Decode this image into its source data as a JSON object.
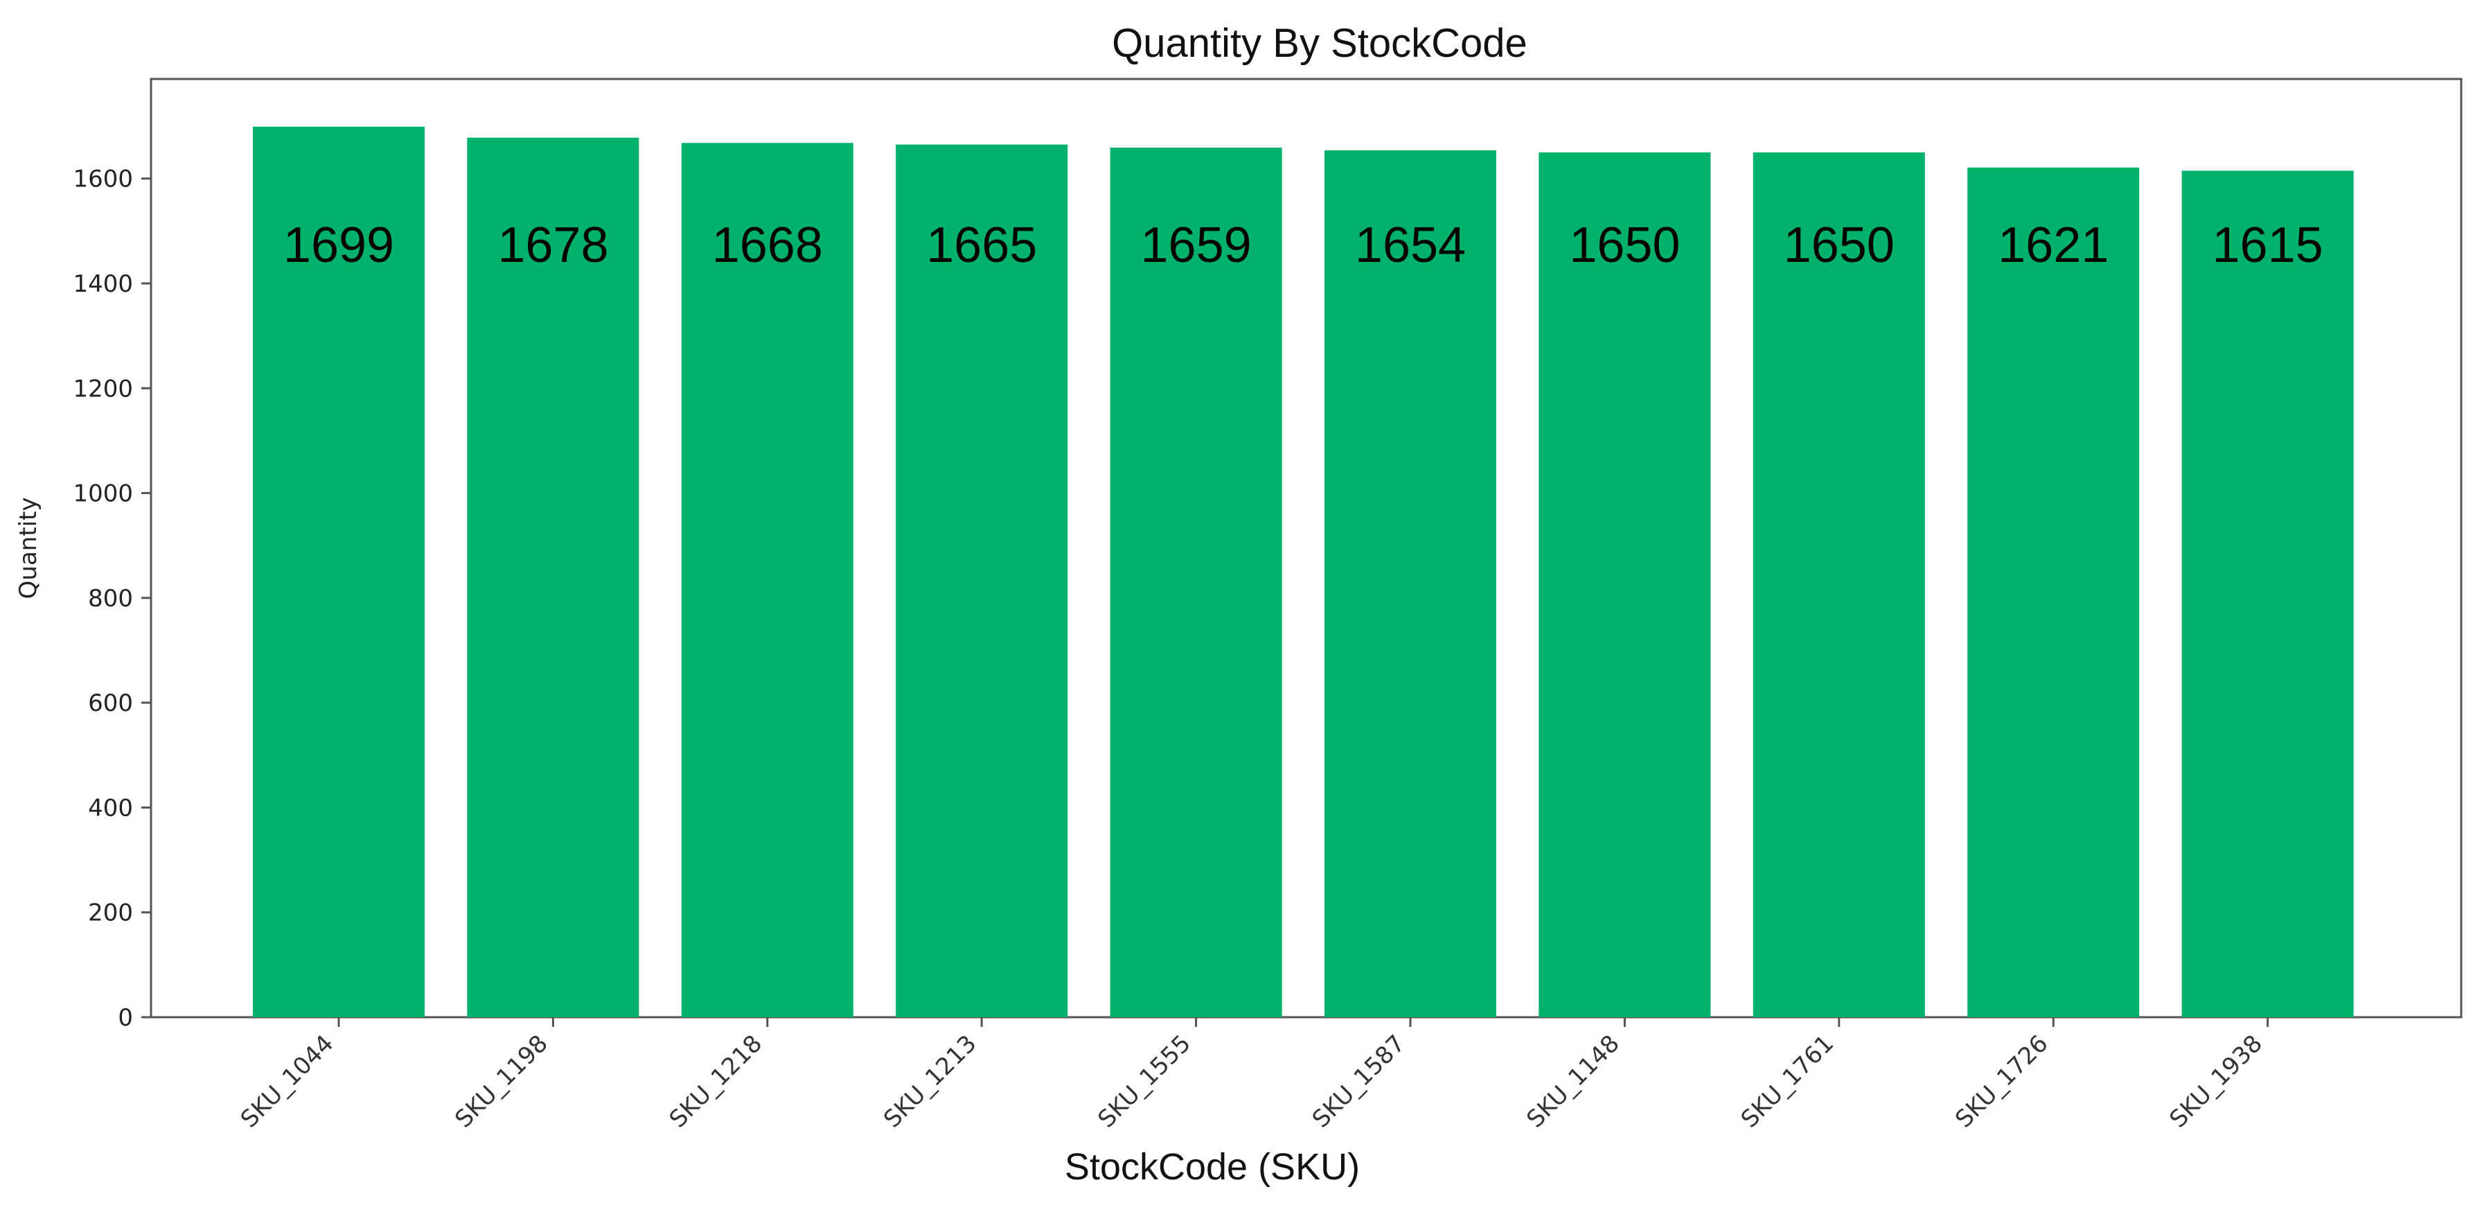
{
  "chart_data": {
    "type": "bar",
    "title": "Quantity By StockCode",
    "xlabel": "StockCode (SKU)",
    "ylabel": "Quantity",
    "categories": [
      "SKU_1044",
      "SKU_1198",
      "SKU_1218",
      "SKU_1213",
      "SKU_1555",
      "SKU_1587",
      "SKU_1148",
      "SKU_1761",
      "SKU_1726",
      "SKU_1938"
    ],
    "values": [
      1699,
      1678,
      1668,
      1665,
      1659,
      1654,
      1650,
      1650,
      1621,
      1615
    ],
    "data_labels": [
      "1699",
      "1678",
      "1668",
      "1665",
      "1659",
      "1654",
      "1650",
      "1650",
      "1621",
      "1615"
    ],
    "ylim": [
      0,
      1790
    ],
    "yticks": [
      0,
      200,
      400,
      600,
      800,
      1000,
      1200,
      1400,
      1600
    ],
    "ytick_labels": [
      "0",
      "200",
      "400",
      "600",
      "800",
      "1000",
      "1200",
      "1400",
      "1600"
    ],
    "bar_color": "#00B16A",
    "grid": false,
    "legend": "none"
  }
}
